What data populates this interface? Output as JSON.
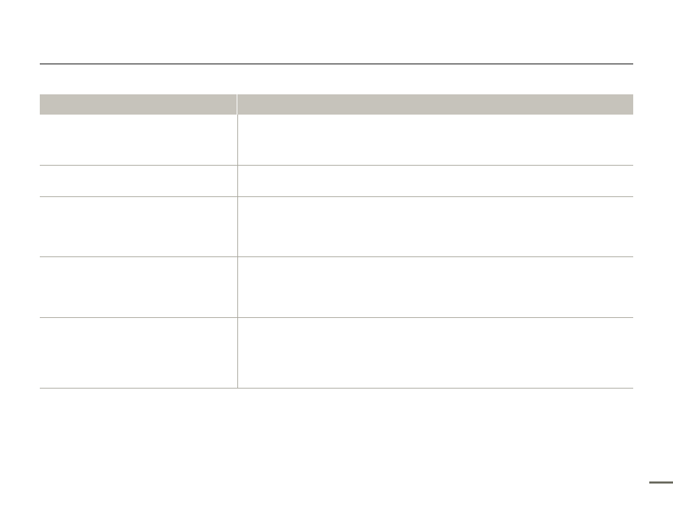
{
  "colors": {
    "header_bg": "#c6c3bb",
    "rule": "#a8a69c",
    "page_bar": "#6b6b60"
  },
  "table": {
    "headers": [
      "",
      ""
    ],
    "rows": [
      [
        "",
        ""
      ],
      [
        "",
        ""
      ],
      [
        "",
        ""
      ],
      [
        "",
        ""
      ],
      [
        "",
        ""
      ]
    ]
  }
}
